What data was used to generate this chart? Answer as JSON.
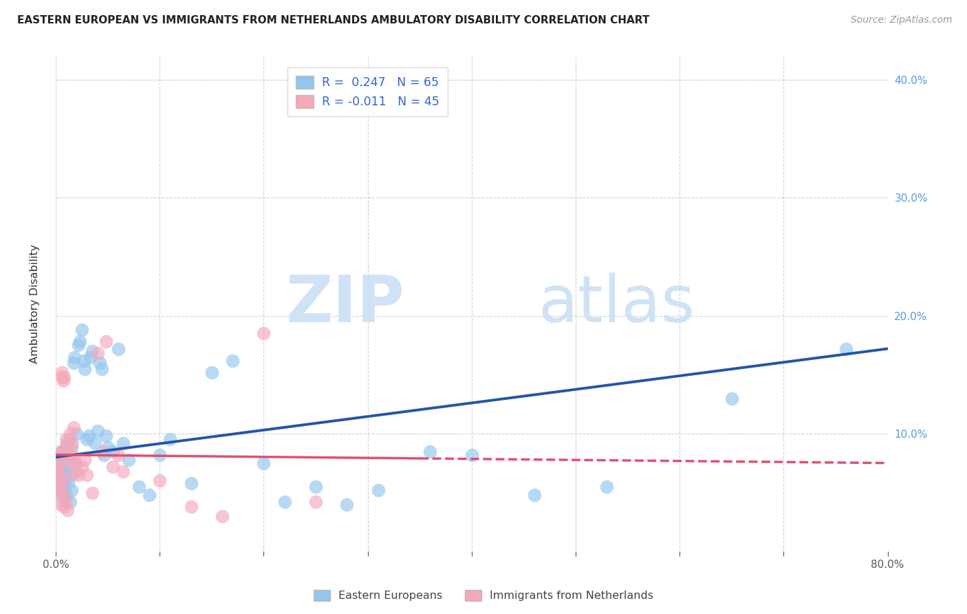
{
  "title": "EASTERN EUROPEAN VS IMMIGRANTS FROM NETHERLANDS AMBULATORY DISABILITY CORRELATION CHART",
  "source": "Source: ZipAtlas.com",
  "ylabel": "Ambulatory Disability",
  "legend_label1": "Eastern Europeans",
  "legend_label2": "Immigrants from Netherlands",
  "r1": 0.247,
  "n1": 65,
  "r2": -0.011,
  "n2": 45,
  "color_blue": "#93C6EE",
  "color_pink": "#F4A8BA",
  "color_trend_blue": "#2255AA",
  "color_trend_pink": "#E05070",
  "color_axis_right": "#5599DD",
  "xlim": [
    0,
    0.8
  ],
  "ylim": [
    0,
    0.42
  ],
  "blue_x": [
    0.001,
    0.002,
    0.003,
    0.004,
    0.004,
    0.005,
    0.005,
    0.006,
    0.006,
    0.007,
    0.007,
    0.008,
    0.008,
    0.009,
    0.01,
    0.01,
    0.011,
    0.012,
    0.013,
    0.014,
    0.015,
    0.015,
    0.016,
    0.017,
    0.018,
    0.019,
    0.02,
    0.022,
    0.023,
    0.025,
    0.027,
    0.028,
    0.03,
    0.032,
    0.033,
    0.035,
    0.038,
    0.04,
    0.042,
    0.044,
    0.046,
    0.048,
    0.05,
    0.055,
    0.06,
    0.065,
    0.07,
    0.08,
    0.09,
    0.1,
    0.11,
    0.13,
    0.15,
    0.17,
    0.2,
    0.22,
    0.25,
    0.28,
    0.31,
    0.36,
    0.4,
    0.46,
    0.53,
    0.65,
    0.76
  ],
  "blue_y": [
    0.075,
    0.068,
    0.08,
    0.072,
    0.062,
    0.085,
    0.055,
    0.07,
    0.05,
    0.082,
    0.045,
    0.078,
    0.06,
    0.065,
    0.09,
    0.048,
    0.073,
    0.058,
    0.095,
    0.042,
    0.088,
    0.052,
    0.065,
    0.16,
    0.165,
    0.075,
    0.1,
    0.175,
    0.178,
    0.188,
    0.162,
    0.155,
    0.095,
    0.098,
    0.165,
    0.17,
    0.092,
    0.102,
    0.16,
    0.155,
    0.082,
    0.098,
    0.088,
    0.085,
    0.172,
    0.092,
    0.078,
    0.055,
    0.048,
    0.082,
    0.095,
    0.058,
    0.152,
    0.162,
    0.075,
    0.042,
    0.055,
    0.04,
    0.052,
    0.085,
    0.082,
    0.048,
    0.055,
    0.13,
    0.172
  ],
  "pink_x": [
    0.001,
    0.001,
    0.002,
    0.002,
    0.003,
    0.003,
    0.004,
    0.004,
    0.005,
    0.005,
    0.006,
    0.006,
    0.007,
    0.007,
    0.008,
    0.008,
    0.009,
    0.01,
    0.01,
    0.011,
    0.011,
    0.012,
    0.013,
    0.014,
    0.015,
    0.016,
    0.017,
    0.018,
    0.02,
    0.022,
    0.025,
    0.028,
    0.03,
    0.035,
    0.04,
    0.045,
    0.048,
    0.055,
    0.06,
    0.065,
    0.1,
    0.13,
    0.16,
    0.2,
    0.25
  ],
  "pink_y": [
    0.072,
    0.065,
    0.068,
    0.058,
    0.082,
    0.055,
    0.078,
    0.048,
    0.085,
    0.04,
    0.148,
    0.152,
    0.145,
    0.05,
    0.148,
    0.038,
    0.062,
    0.095,
    0.042,
    0.092,
    0.035,
    0.088,
    0.075,
    0.1,
    0.082,
    0.092,
    0.105,
    0.078,
    0.068,
    0.065,
    0.072,
    0.078,
    0.065,
    0.05,
    0.168,
    0.085,
    0.178,
    0.072,
    0.082,
    0.068,
    0.06,
    0.038,
    0.03,
    0.185,
    0.042
  ],
  "watermark_zip": "ZIP",
  "watermark_atlas": "atlas",
  "background_color": "#ffffff",
  "grid_color": "#cccccc"
}
